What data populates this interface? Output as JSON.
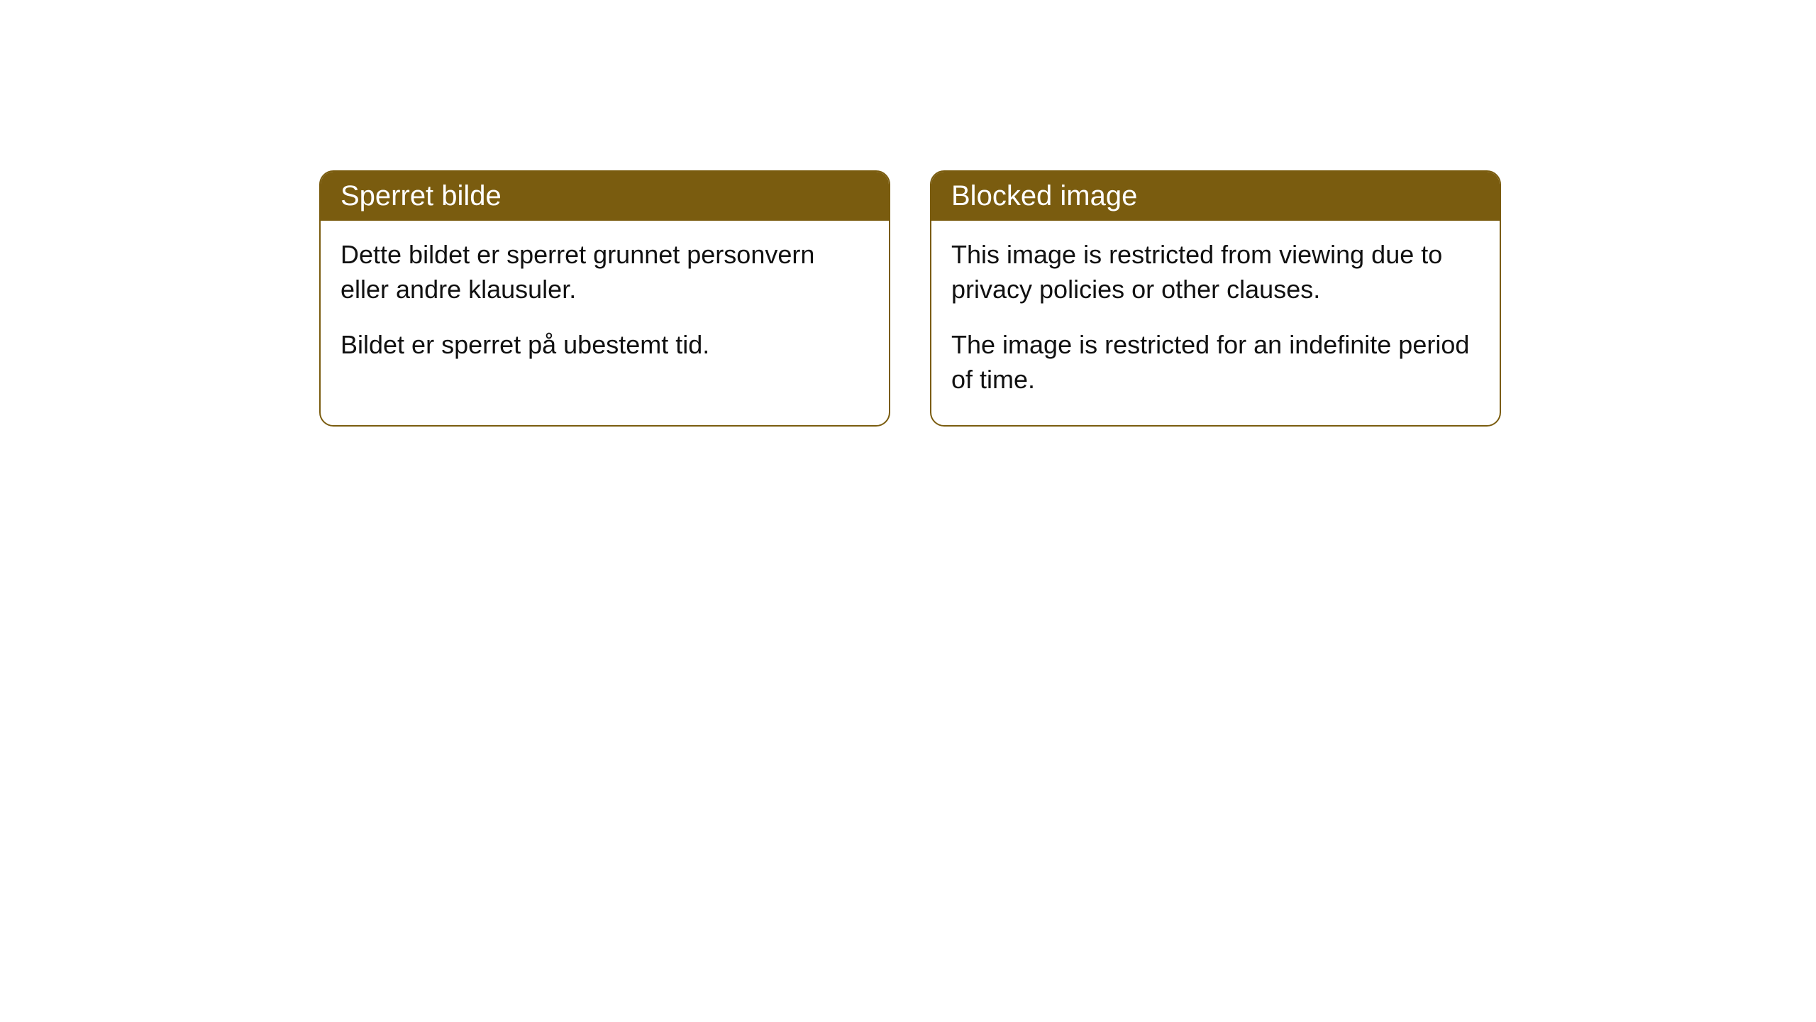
{
  "cards": [
    {
      "title": "Sperret bilde",
      "paragraph1": "Dette bildet er sperret grunnet personvern eller andre klausuler.",
      "paragraph2": "Bildet er sperret på ubestemt tid."
    },
    {
      "title": "Blocked image",
      "paragraph1": "This image is restricted from viewing due to privacy policies or other clauses.",
      "paragraph2": "The image is restricted for an indefinite period of time."
    }
  ],
  "style": {
    "header_background": "#7a5c0f",
    "header_text_color": "#ffffff",
    "body_text_color": "#111111",
    "border_color": "#7a5c0f",
    "card_background": "#ffffff",
    "page_background": "#ffffff",
    "border_radius": 20,
    "title_fontsize": 40,
    "body_fontsize": 36
  }
}
